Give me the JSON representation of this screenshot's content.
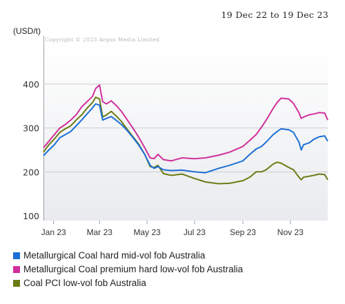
{
  "date_range": "19 Dec 22 to 19 Dec 23",
  "unit_label": "(USD/t)",
  "copyright": "Copyright © 2023 Argus Media Limited",
  "chart_data": {
    "type": "line",
    "ylim": [
      100,
      400
    ],
    "yticks": [
      "100",
      "200",
      "300",
      "400"
    ],
    "xticks": [
      "Jan 23",
      "Mar 23",
      "May 23",
      "Jul 23",
      "Sep 23",
      "Nov 23"
    ],
    "xtick_dates": [
      "2023-01-01",
      "2023-03-01",
      "2023-05-01",
      "2023-07-01",
      "2023-09-01",
      "2023-11-01"
    ],
    "x_start": "2022-12-19",
    "x_end": "2023-12-19",
    "series": [
      {
        "name": "Metallurgical Coal hard mid-vol fob Australia",
        "color": "#1c6fd6",
        "points": [
          [
            "2022-12-19",
            237
          ],
          [
            "2022-12-26",
            250
          ],
          [
            "2023-01-02",
            262
          ],
          [
            "2023-01-09",
            278
          ],
          [
            "2023-01-16",
            285
          ],
          [
            "2023-01-23",
            292
          ],
          [
            "2023-01-30",
            305
          ],
          [
            "2023-02-06",
            318
          ],
          [
            "2023-02-13",
            332
          ],
          [
            "2023-02-20",
            346
          ],
          [
            "2023-02-24",
            355
          ],
          [
            "2023-03-01",
            352
          ],
          [
            "2023-03-05",
            318
          ],
          [
            "2023-03-10",
            322
          ],
          [
            "2023-03-16",
            326
          ],
          [
            "2023-03-22",
            318
          ],
          [
            "2023-03-29",
            308
          ],
          [
            "2023-04-05",
            295
          ],
          [
            "2023-04-12",
            280
          ],
          [
            "2023-04-20",
            262
          ],
          [
            "2023-04-28",
            240
          ],
          [
            "2023-05-05",
            215
          ],
          [
            "2023-05-10",
            208
          ],
          [
            "2023-05-15",
            212
          ],
          [
            "2023-05-22",
            205
          ],
          [
            "2023-06-01",
            203
          ],
          [
            "2023-06-15",
            204
          ],
          [
            "2023-07-01",
            200
          ],
          [
            "2023-07-15",
            198
          ],
          [
            "2023-08-01",
            208
          ],
          [
            "2023-08-15",
            215
          ],
          [
            "2023-09-01",
            225
          ],
          [
            "2023-09-10",
            240
          ],
          [
            "2023-09-18",
            252
          ],
          [
            "2023-09-25",
            258
          ],
          [
            "2023-10-01",
            268
          ],
          [
            "2023-10-10",
            285
          ],
          [
            "2023-10-15",
            292
          ],
          [
            "2023-10-20",
            298
          ],
          [
            "2023-10-30",
            296
          ],
          [
            "2023-11-05",
            290
          ],
          [
            "2023-11-12",
            268
          ],
          [
            "2023-11-15",
            250
          ],
          [
            "2023-11-18",
            262
          ],
          [
            "2023-11-25",
            266
          ],
          [
            "2023-12-01",
            274
          ],
          [
            "2023-12-08",
            280
          ],
          [
            "2023-12-15",
            282
          ],
          [
            "2023-12-19",
            270
          ]
        ]
      },
      {
        "name": "Metallurgical Coal premium hard low-vol fob Australia",
        "color": "#d12f9b",
        "points": [
          [
            "2022-12-19",
            255
          ],
          [
            "2022-12-26",
            270
          ],
          [
            "2023-01-02",
            285
          ],
          [
            "2023-01-09",
            300
          ],
          [
            "2023-01-16",
            308
          ],
          [
            "2023-01-23",
            318
          ],
          [
            "2023-01-30",
            330
          ],
          [
            "2023-02-06",
            348
          ],
          [
            "2023-02-13",
            360
          ],
          [
            "2023-02-20",
            372
          ],
          [
            "2023-02-24",
            390
          ],
          [
            "2023-03-01",
            398
          ],
          [
            "2023-03-05",
            360
          ],
          [
            "2023-03-10",
            355
          ],
          [
            "2023-03-16",
            362
          ],
          [
            "2023-03-22",
            352
          ],
          [
            "2023-03-29",
            338
          ],
          [
            "2023-04-05",
            320
          ],
          [
            "2023-04-12",
            302
          ],
          [
            "2023-04-20",
            280
          ],
          [
            "2023-04-28",
            255
          ],
          [
            "2023-05-05",
            232
          ],
          [
            "2023-05-10",
            230
          ],
          [
            "2023-05-15",
            240
          ],
          [
            "2023-05-22",
            228
          ],
          [
            "2023-06-01",
            225
          ],
          [
            "2023-06-15",
            232
          ],
          [
            "2023-07-01",
            230
          ],
          [
            "2023-07-15",
            232
          ],
          [
            "2023-08-01",
            238
          ],
          [
            "2023-08-15",
            245
          ],
          [
            "2023-09-01",
            258
          ],
          [
            "2023-09-10",
            272
          ],
          [
            "2023-09-18",
            285
          ],
          [
            "2023-09-25",
            302
          ],
          [
            "2023-10-01",
            318
          ],
          [
            "2023-10-10",
            345
          ],
          [
            "2023-10-15",
            358
          ],
          [
            "2023-10-20",
            368
          ],
          [
            "2023-10-30",
            366
          ],
          [
            "2023-11-05",
            356
          ],
          [
            "2023-11-12",
            335
          ],
          [
            "2023-11-15",
            322
          ],
          [
            "2023-11-18",
            325
          ],
          [
            "2023-11-25",
            330
          ],
          [
            "2023-12-01",
            332
          ],
          [
            "2023-12-08",
            335
          ],
          [
            "2023-12-15",
            334
          ],
          [
            "2023-12-19",
            318
          ]
        ]
      },
      {
        "name": "Coal PCI low-vol fob Australia",
        "color": "#6b7b14",
        "points": [
          [
            "2022-12-19",
            245
          ],
          [
            "2022-12-26",
            262
          ],
          [
            "2023-01-02",
            275
          ],
          [
            "2023-01-09",
            290
          ],
          [
            "2023-01-16",
            298
          ],
          [
            "2023-01-23",
            305
          ],
          [
            "2023-01-30",
            318
          ],
          [
            "2023-02-06",
            330
          ],
          [
            "2023-02-13",
            345
          ],
          [
            "2023-02-20",
            358
          ],
          [
            "2023-02-24",
            370
          ],
          [
            "2023-03-01",
            366
          ],
          [
            "2023-03-05",
            325
          ],
          [
            "2023-03-10",
            330
          ],
          [
            "2023-03-16",
            338
          ],
          [
            "2023-03-22",
            328
          ],
          [
            "2023-03-29",
            315
          ],
          [
            "2023-04-05",
            298
          ],
          [
            "2023-04-12",
            282
          ],
          [
            "2023-04-20",
            264
          ],
          [
            "2023-04-28",
            240
          ],
          [
            "2023-05-05",
            212
          ],
          [
            "2023-05-10",
            210
          ],
          [
            "2023-05-15",
            215
          ],
          [
            "2023-05-22",
            196
          ],
          [
            "2023-06-01",
            192
          ],
          [
            "2023-06-15",
            195
          ],
          [
            "2023-07-01",
            185
          ],
          [
            "2023-07-15",
            177
          ],
          [
            "2023-08-01",
            173
          ],
          [
            "2023-08-15",
            174
          ],
          [
            "2023-09-01",
            180
          ],
          [
            "2023-09-10",
            188
          ],
          [
            "2023-09-18",
            200
          ],
          [
            "2023-09-25",
            200
          ],
          [
            "2023-10-01",
            205
          ],
          [
            "2023-10-10",
            218
          ],
          [
            "2023-10-15",
            222
          ],
          [
            "2023-10-20",
            220
          ],
          [
            "2023-10-30",
            210
          ],
          [
            "2023-11-05",
            205
          ],
          [
            "2023-11-12",
            188
          ],
          [
            "2023-11-15",
            182
          ],
          [
            "2023-11-18",
            188
          ],
          [
            "2023-11-25",
            190
          ],
          [
            "2023-12-01",
            192
          ],
          [
            "2023-12-08",
            195
          ],
          [
            "2023-12-15",
            194
          ],
          [
            "2023-12-19",
            182
          ]
        ]
      }
    ]
  }
}
